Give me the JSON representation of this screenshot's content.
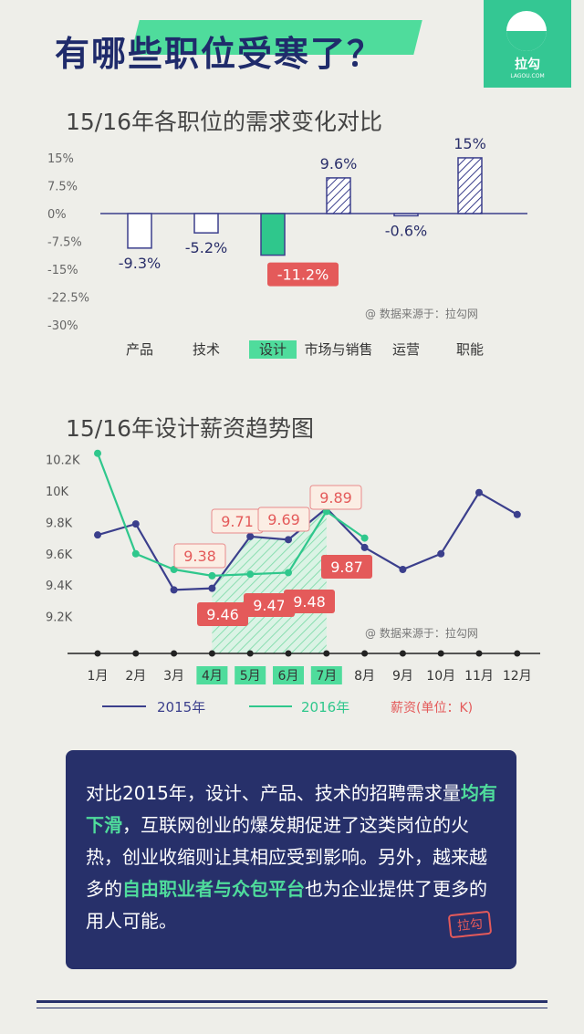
{
  "header": {
    "title": "有哪些职位受寒了？",
    "logo_text": "拉勾",
    "logo_sub": "LAGOU.COM"
  },
  "colors": {
    "navy": "#1f2b6b",
    "green": "#34c793",
    "accent": "#4fdc9c",
    "red": "#e45a5a",
    "line2015": "#3b3f8c",
    "line2016": "#2fc78c"
  },
  "chart_data": [
    {
      "type": "bar",
      "title": "15/16年各职位的需求变化对比",
      "categories": [
        "产品",
        "技术",
        "设计",
        "市场与销售",
        "运营",
        "职能"
      ],
      "values": [
        -9.3,
        -5.2,
        -11.2,
        9.6,
        -0.6,
        15
      ],
      "value_labels": [
        "-9.3%",
        "-5.2%",
        "-11.2%",
        "9.6%",
        "-0.6%",
        "15%"
      ],
      "highlight": "设计",
      "y_ticks": [
        "15%",
        "7.5%",
        "0%",
        "-7.5%",
        "-15%",
        "-22.5%",
        "-30%"
      ],
      "ylim": [
        -30,
        15
      ],
      "source": "@ 数据来源于：拉勾网"
    },
    {
      "type": "line",
      "title": "15/16年设计薪资趋势图",
      "categories": [
        "1月",
        "2月",
        "3月",
        "4月",
        "5月",
        "6月",
        "7月",
        "8月",
        "9月",
        "10月",
        "11月",
        "12月"
      ],
      "highlight": [
        "4月",
        "5月",
        "6月",
        "7月"
      ],
      "y_ticks": [
        "10.2K",
        "10K",
        "9.8K",
        "9.6K",
        "9.4K",
        "9.2K"
      ],
      "ylim": [
        9.0,
        10.3
      ],
      "series": [
        {
          "name": "2015年",
          "values": [
            9.72,
            9.79,
            9.37,
            9.38,
            9.71,
            9.69,
            9.89,
            9.64,
            9.5,
            9.6,
            9.99,
            9.85
          ]
        },
        {
          "name": "2016年",
          "values": [
            10.24,
            9.6,
            9.5,
            9.46,
            9.47,
            9.48,
            9.87,
            9.7,
            null,
            null,
            null,
            null
          ]
        }
      ],
      "callouts_2015": [
        "9.38",
        "9.71",
        "9.69",
        "9.89"
      ],
      "callouts_2016": [
        "9.46",
        "9.47",
        "9.48",
        "9.87"
      ],
      "unit_legend": "薪资(单位：K)",
      "source": "@ 数据来源于：拉勾网"
    }
  ],
  "info": {
    "p1": "对比2015年，设计、产品、技术的招聘需求量",
    "h1": "均有下滑",
    "p2": "，互联网创业的爆发期促进了这类岗位的火热，创业收缩则让其相应受到影响。另外，越来越多的",
    "h2": "自由职业者与众包平台",
    "p3": "也为企业提供了更多的用人可能。",
    "stamp": "拉勾"
  }
}
